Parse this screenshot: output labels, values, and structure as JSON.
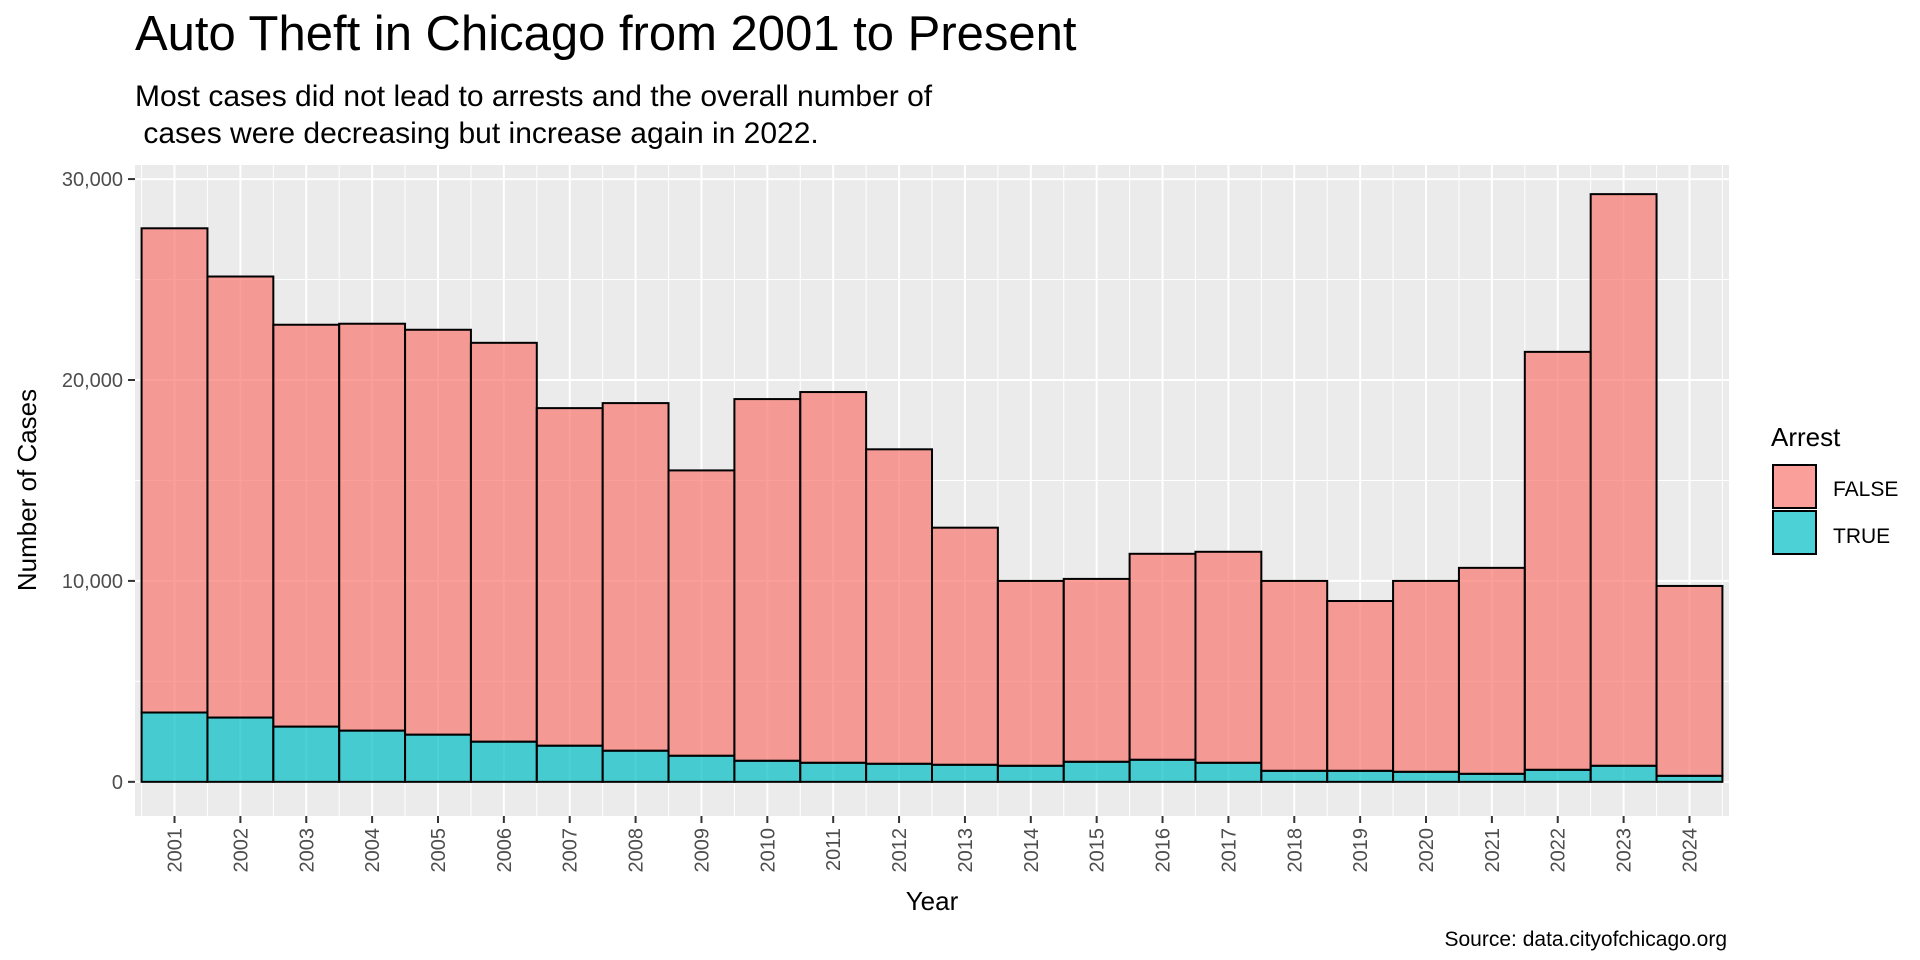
{
  "chart_data": {
    "type": "bar",
    "stacked": true,
    "title": "Auto Theft in Chicago from 2001 to Present",
    "subtitle": "Most cases did not lead to arrests and the overall number of\n cases were decreasing but increase again in 2022.",
    "caption": "Source: data.cityofchicago.org",
    "xlabel": "Year",
    "ylabel": "Number of Cases",
    "ylim": [
      -1700,
      30700
    ],
    "yticks": [
      0,
      10000,
      20000,
      30000
    ],
    "ytick_labels": [
      "0",
      "10,000",
      "20,000",
      "30,000"
    ],
    "grid": true,
    "legend": {
      "title": "Arrest",
      "position": "right"
    },
    "categories": [
      "2001",
      "2002",
      "2003",
      "2004",
      "2005",
      "2006",
      "2007",
      "2008",
      "2009",
      "2010",
      "2011",
      "2012",
      "2013",
      "2014",
      "2015",
      "2016",
      "2017",
      "2018",
      "2019",
      "2020",
      "2021",
      "2022",
      "2023",
      "2024"
    ],
    "series": [
      {
        "name": "FALSE",
        "color": "#F8766D",
        "values": [
          24100,
          21950,
          20000,
          20250,
          20150,
          19850,
          16800,
          17300,
          14200,
          18000,
          18450,
          15650,
          11800,
          9200,
          9100,
          10250,
          10500,
          9450,
          8450,
          9500,
          10250,
          20800,
          28450,
          9450
        ]
      },
      {
        "name": "TRUE",
        "color": "#00BFC4",
        "values": [
          3450,
          3200,
          2750,
          2550,
          2350,
          2000,
          1800,
          1550,
          1300,
          1050,
          950,
          900,
          850,
          800,
          1000,
          1100,
          950,
          550,
          550,
          500,
          400,
          600,
          800,
          300
        ]
      }
    ]
  }
}
